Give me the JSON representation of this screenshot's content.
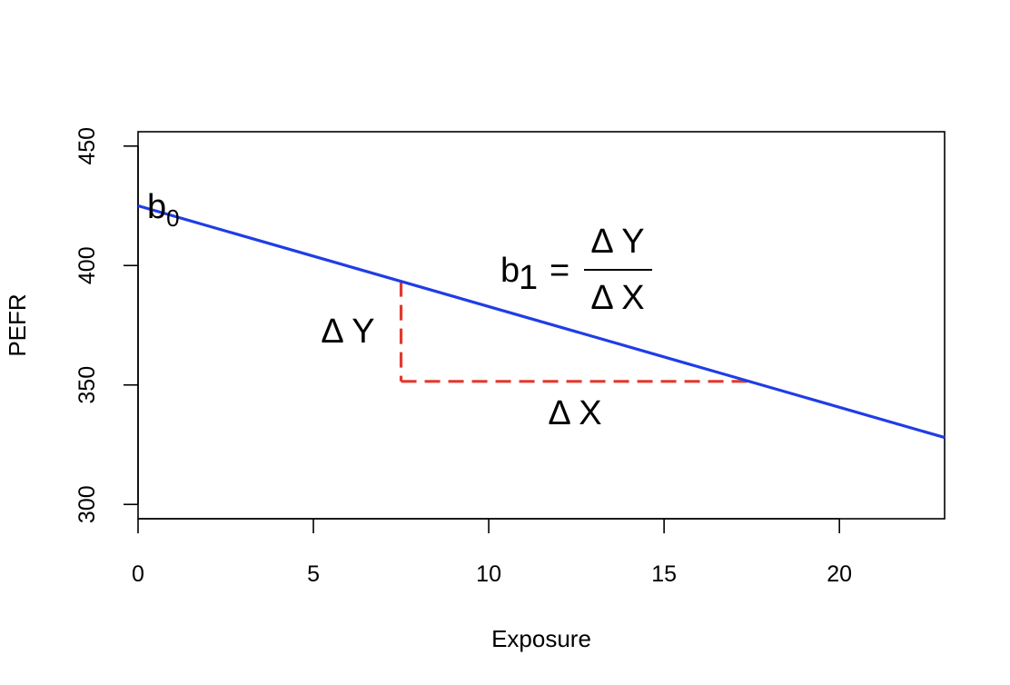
{
  "chart_data": {
    "type": "line",
    "xlabel": "Exposure",
    "ylabel": "PEFR",
    "xlim": [
      0,
      23
    ],
    "ylim": [
      294,
      456
    ],
    "x_ticks": [
      0,
      5,
      10,
      15,
      20
    ],
    "y_ticks": [
      300,
      350,
      400,
      450
    ],
    "x_tick_labels": [
      "0",
      "5",
      "10",
      "15",
      "20"
    ],
    "y_tick_labels": [
      "300",
      "350",
      "400",
      "450"
    ],
    "grid": false,
    "series": [
      {
        "x": [
          0,
          23
        ],
        "y": [
          425,
          328
        ],
        "color": "#1f3de6",
        "style": "solid"
      }
    ],
    "guide_segments": [
      {
        "x": [
          7.5,
          7.5
        ],
        "y": [
          393.4,
          351.5
        ],
        "color": "#e03a2e",
        "style": "dashed"
      },
      {
        "x": [
          7.5,
          17.5
        ],
        "y": [
          351.5,
          351.5
        ],
        "color": "#e03a2e",
        "style": "dashed"
      }
    ],
    "annotations": {
      "intercept": {
        "base": "b",
        "sub": "0"
      },
      "slope": {
        "base": "b",
        "sub": "1",
        "equals": "=",
        "numerator": "Δ Y",
        "denominator": "Δ X"
      },
      "delta_y": "Δ Y",
      "delta_x": "Δ X"
    }
  }
}
